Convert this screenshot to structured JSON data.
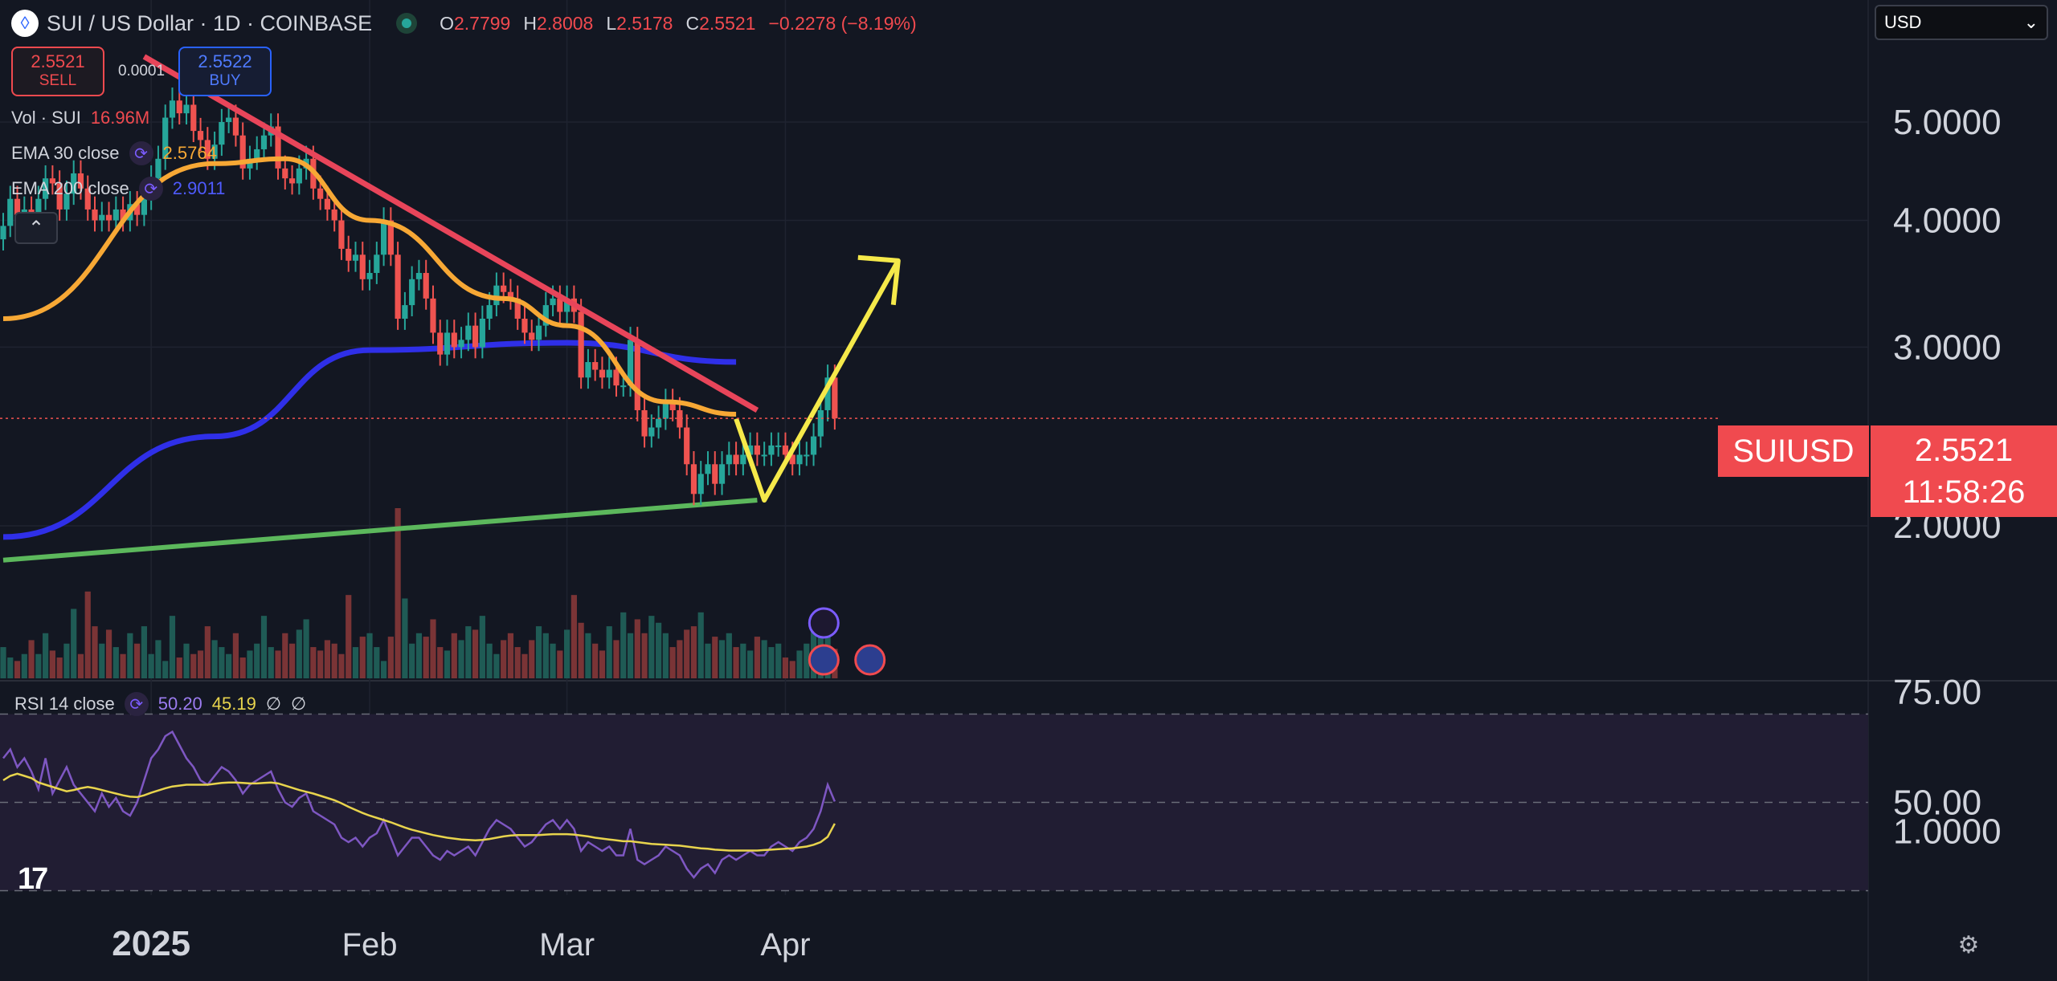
{
  "header": {
    "symbol_title": "SUI / US Dollar · 1D · COINBASE",
    "logo_glyph": "◊",
    "ohlc": [
      {
        "k": "O",
        "v": "2.7799"
      },
      {
        "k": "H",
        "v": "2.8008"
      },
      {
        "k": "L",
        "v": "2.5178"
      },
      {
        "k": "C",
        "v": "2.5521"
      }
    ],
    "change": "−0.2278 (−8.19%)"
  },
  "trade": {
    "sell_price": "2.5521",
    "sell_label": "SELL",
    "spread": "0.0001",
    "buy_price": "2.5522",
    "buy_label": "BUY"
  },
  "legend": {
    "vol_label": "Vol · SUI",
    "vol_value": "16.96M",
    "ema30_label": "EMA 30 close",
    "ema30_value": "2.5764",
    "ema200_label": "EMA 200 close",
    "ema200_value": "2.9011",
    "collapse_glyph": "⌃"
  },
  "currency": {
    "selected": "USD",
    "arrow": "⌄"
  },
  "price_tag": {
    "symbol": "SUIUSD",
    "price": "2.5521",
    "countdown": "11:58:26"
  },
  "rsi_legend": {
    "label": "RSI 14 close",
    "rsi": "50.20",
    "ma": "45.19",
    "na1": "∅",
    "na2": "∅"
  },
  "footer": {
    "tv_logo": "17",
    "settings_glyph": "⚙"
  },
  "colors": {
    "background": "#131722",
    "up": "#26a69a",
    "down": "#ef5350",
    "ema30": "#f7a835",
    "ema200": "#2f2fe8",
    "trendline": "#e8455a",
    "support": "#5cb85c",
    "projection": "#f5e94a",
    "rsi": "#7e57c2",
    "rsi_ma": "#e8d44d"
  },
  "chart_data": {
    "type": "candlestick",
    "title": "SUI / US Dollar · 1D · COINBASE",
    "y_axis": {
      "scale": "log",
      "ticks": [
        "5.0000",
        "4.0000",
        "3.0000",
        "2.0000",
        "1.0000"
      ],
      "tick_values": [
        5,
        4,
        3,
        2,
        1
      ]
    },
    "x_axis": {
      "labels": [
        "2025",
        "Feb",
        "Mar",
        "Apr"
      ],
      "label_dates": [
        "2025-01-01",
        "2025-02-01",
        "2025-03-01",
        "2025-04-01"
      ]
    },
    "start_date": "2024-12-11",
    "candles_close": [
      3.95,
      4.2,
      4.05,
      4.1,
      3.9,
      4.2,
      4.4,
      4.35,
      4.1,
      4.25,
      4.45,
      4.3,
      4.1,
      4.0,
      4.05,
      4.0,
      4.1,
      4.0,
      4.15,
      4.05,
      4.2,
      4.4,
      4.6,
      5.05,
      5.25,
      5.1,
      5.2,
      4.9,
      4.8,
      4.6,
      4.75,
      5.0,
      5.05,
      4.85,
      4.5,
      4.6,
      4.7,
      4.85,
      4.95,
      4.5,
      4.4,
      4.35,
      4.5,
      4.6,
      4.3,
      4.2,
      4.1,
      4.0,
      3.75,
      3.65,
      3.7,
      3.5,
      3.55,
      3.7,
      4.0,
      3.7,
      3.2,
      3.3,
      3.5,
      3.55,
      3.35,
      3.1,
      2.95,
      3.1,
      3.0,
      3.05,
      3.15,
      3.0,
      3.2,
      3.3,
      3.45,
      3.4,
      3.35,
      3.2,
      3.1,
      3.05,
      3.15,
      3.3,
      3.35,
      3.25,
      3.35,
      3.25,
      2.8,
      2.9,
      2.85,
      2.8,
      2.85,
      2.75,
      2.75,
      3.05,
      2.6,
      2.45,
      2.5,
      2.55,
      2.65,
      2.6,
      2.5,
      2.3,
      2.15,
      2.25,
      2.3,
      2.2,
      2.3,
      2.35,
      2.3,
      2.35,
      2.4,
      2.35,
      2.35,
      2.4,
      2.4,
      2.35,
      2.3,
      2.35,
      2.35,
      2.45,
      2.6,
      2.8,
      2.5521
    ],
    "ema30": [
      {
        "date": "2024-12-11",
        "v": 3.2
      },
      {
        "date": "2025-01-10",
        "v": 4.55
      },
      {
        "date": "2025-01-20",
        "v": 4.6
      },
      {
        "date": "2025-02-01",
        "v": 4.0
      },
      {
        "date": "2025-02-20",
        "v": 3.35
      },
      {
        "date": "2025-03-01",
        "v": 3.15
      },
      {
        "date": "2025-03-15",
        "v": 2.65
      },
      {
        "date": "2025-03-25",
        "v": 2.5764
      }
    ],
    "ema200": [
      {
        "date": "2024-12-11",
        "v": 1.95
      },
      {
        "date": "2025-01-10",
        "v": 2.45
      },
      {
        "date": "2025-02-01",
        "v": 2.98
      },
      {
        "date": "2025-03-01",
        "v": 3.03
      },
      {
        "date": "2025-03-25",
        "v": 2.9011
      }
    ],
    "trendline": [
      {
        "date": "2024-12-31",
        "v": 5.8
      },
      {
        "date": "2025-03-28",
        "v": 2.6
      }
    ],
    "support": [
      {
        "date": "2024-12-11",
        "v": 1.85
      },
      {
        "date": "2025-03-28",
        "v": 2.12
      }
    ],
    "projection": [
      {
        "date": "2025-03-25",
        "v": 2.55
      },
      {
        "date": "2025-03-29",
        "v": 2.12
      },
      {
        "date": "2025-04-17",
        "v": 3.65
      }
    ],
    "current_price": 2.5521,
    "volume": [
      18,
      12,
      10,
      14,
      22,
      14,
      26,
      16,
      12,
      20,
      40,
      14,
      50,
      30,
      20,
      28,
      18,
      14,
      26,
      20,
      30,
      14,
      22,
      10,
      36,
      12,
      20,
      14,
      16,
      30,
      22,
      18,
      14,
      26,
      12,
      16,
      20,
      36,
      18,
      16,
      26,
      20,
      28,
      34,
      18,
      16,
      22,
      20,
      14,
      48,
      18,
      24,
      26,
      18,
      10,
      24,
      98,
      46,
      20,
      26,
      24,
      34,
      18,
      16,
      26,
      22,
      30,
      28,
      36,
      20,
      14,
      22,
      26,
      18,
      14,
      22,
      30,
      26,
      20,
      16,
      28,
      48,
      32,
      26,
      20,
      16,
      30,
      22,
      38,
      26,
      34,
      26,
      36,
      32,
      26,
      18,
      22,
      28,
      30,
      38,
      20,
      24,
      22,
      26,
      18,
      20,
      16,
      24,
      22,
      18,
      20,
      12,
      10,
      16,
      20,
      28,
      24,
      30,
      16.96
    ],
    "rsi": [
      60,
      62,
      58,
      60,
      57,
      53,
      60,
      52,
      55,
      58,
      54,
      52,
      50,
      48,
      52,
      49,
      51,
      48,
      47,
      50,
      55,
      60,
      62,
      65,
      66,
      63,
      60,
      58,
      55,
      54,
      56,
      58,
      57,
      55,
      52,
      54,
      55,
      56,
      57,
      53,
      50,
      49,
      51,
      52,
      48,
      47,
      46,
      45,
      42,
      41,
      42,
      40,
      42,
      43,
      46,
      42,
      38,
      40,
      42,
      42,
      40,
      38,
      37,
      39,
      38,
      39,
      40,
      38,
      41,
      44,
      46,
      45,
      44,
      42,
      40,
      41,
      43,
      45,
      46,
      44,
      46,
      44,
      39,
      41,
      40,
      39,
      40,
      38,
      38,
      44,
      37,
      36,
      37,
      38,
      40,
      39,
      38,
      35,
      33,
      35,
      36,
      34,
      37,
      38,
      37,
      38,
      39,
      38,
      38,
      40,
      41,
      40,
      39,
      41,
      42,
      44,
      48,
      54,
      50.2
    ],
    "rsi_ma": [
      55,
      56,
      56.5,
      56,
      55.5,
      54.5,
      54,
      53.5,
      53,
      52.5,
      52.8,
      53.2,
      53.5,
      53.2,
      52.8,
      52.4,
      52,
      51.6,
      51.3,
      51.2,
      51.6,
      52.2,
      52.7,
      53.2,
      53.6,
      53.8,
      54,
      54,
      54,
      54,
      54.2,
      54.4,
      54.5,
      54.5,
      54.4,
      54.3,
      54.3,
      54.4,
      54.5,
      54.3,
      53.8,
      53.3,
      52.8,
      52.4,
      52,
      51.5,
      51,
      50.5,
      49.8,
      49,
      48.3,
      47.6,
      47,
      46.5,
      46,
      45.5,
      44.9,
      44.3,
      43.8,
      43.4,
      43,
      42.6,
      42.3,
      42,
      41.8,
      41.6,
      41.5,
      41.4,
      41.5,
      41.7,
      42,
      42.3,
      42.5,
      42.6,
      42.6,
      42.6,
      42.6,
      42.7,
      42.8,
      42.8,
      42.8,
      42.7,
      42.5,
      42.3,
      42,
      41.8,
      41.6,
      41.4,
      41.2,
      41.2,
      41,
      40.8,
      40.6,
      40.5,
      40.4,
      40.3,
      40.2,
      40,
      39.8,
      39.6,
      39.5,
      39.3,
      39.2,
      39.1,
      39.1,
      39.1,
      39.1,
      39.1,
      39.2,
      39.3,
      39.4,
      39.5,
      39.6,
      39.8,
      40,
      40.4,
      41,
      42.2,
      45.19
    ],
    "rsi_axis": {
      "ticks": [
        "75.00",
        "50.00"
      ],
      "tick_values": [
        75,
        50
      ],
      "band": [
        30,
        70
      ]
    }
  }
}
